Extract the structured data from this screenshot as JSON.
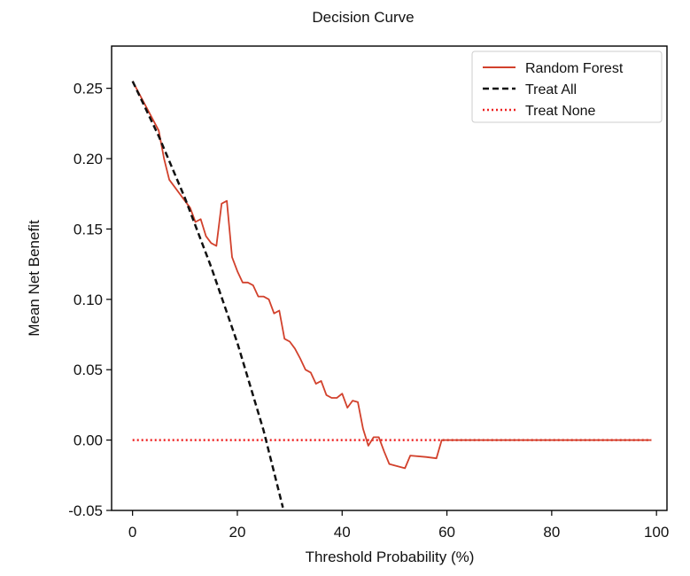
{
  "chart_data": {
    "type": "line",
    "title": "Decision Curve",
    "xlabel": "Threshold Probability (%)",
    "ylabel": "Mean Net Benefit",
    "xlim": [
      -4,
      102
    ],
    "ylim": [
      -0.05,
      0.28
    ],
    "x_ticks": [
      0,
      20,
      40,
      60,
      80,
      100
    ],
    "y_ticks": [
      -0.05,
      0.0,
      0.05,
      0.1,
      0.15,
      0.2,
      0.25
    ],
    "y_tick_labels": [
      "-0.05",
      "0.00",
      "0.05",
      "0.10",
      "0.15",
      "0.20",
      "0.25"
    ],
    "legend_position": "top-right",
    "series": [
      {
        "name": "Random Forest",
        "style": "solid",
        "color": "#d2412c",
        "x": [
          0,
          5,
          6,
          7,
          9,
          10,
          11,
          12,
          13,
          14,
          15,
          16,
          17,
          18,
          19,
          20,
          21,
          22,
          23,
          24,
          25,
          26,
          27,
          28,
          29,
          30,
          31,
          32,
          33,
          34,
          35,
          36,
          37,
          38,
          39,
          40,
          41,
          42,
          43,
          44,
          45,
          46,
          47,
          48,
          49,
          50,
          52,
          53,
          56,
          58,
          59,
          60,
          99
        ],
        "y": [
          0.255,
          0.22,
          0.2,
          0.185,
          0.175,
          0.17,
          0.165,
          0.155,
          0.157,
          0.145,
          0.14,
          0.138,
          0.168,
          0.17,
          0.13,
          0.12,
          0.112,
          0.112,
          0.11,
          0.102,
          0.102,
          0.1,
          0.09,
          0.092,
          0.072,
          0.07,
          0.065,
          0.058,
          0.05,
          0.048,
          0.04,
          0.042,
          0.032,
          0.03,
          0.03,
          0.033,
          0.023,
          0.028,
          0.027,
          0.008,
          -0.004,
          0.002,
          0.002,
          -0.008,
          -0.017,
          -0.018,
          -0.02,
          -0.011,
          -0.012,
          -0.013,
          0.0,
          0.0,
          0.0
        ]
      },
      {
        "name": "Treat All",
        "style": "dashed",
        "color": "#111111",
        "x": [
          0,
          5,
          10,
          15,
          20,
          25,
          28.7
        ],
        "y": [
          0.255,
          0.216,
          0.172,
          0.123,
          0.069,
          0.007,
          -0.048
        ]
      },
      {
        "name": "Treat None",
        "style": "dotted",
        "color": "#ee2222",
        "x": [
          0,
          99
        ],
        "y": [
          0.0,
          0.0
        ]
      }
    ]
  }
}
